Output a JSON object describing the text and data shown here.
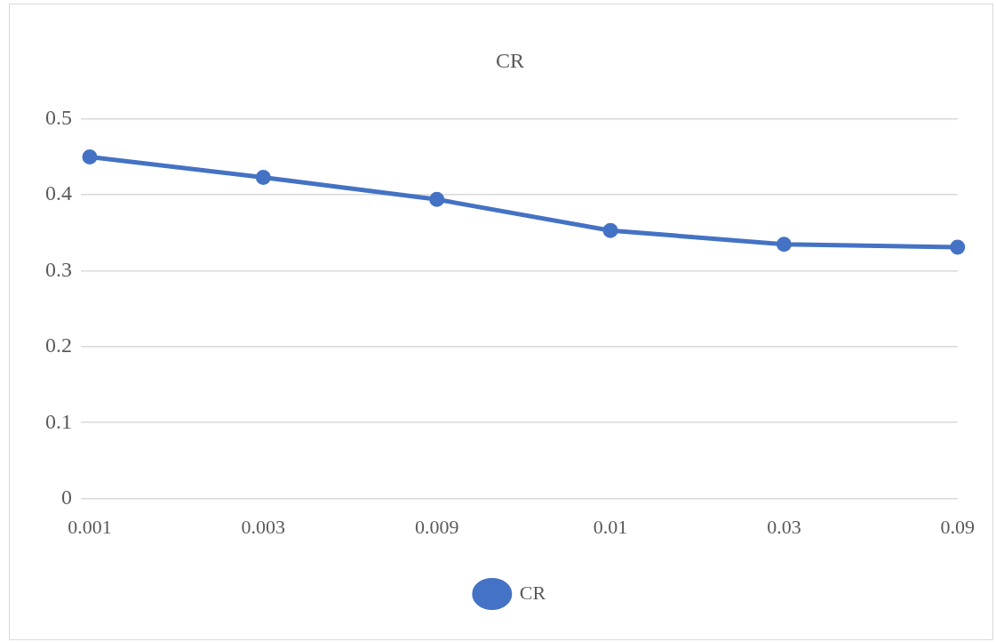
{
  "chart_data": {
    "type": "line",
    "title": "CR",
    "categories": [
      "0.001",
      "0.003",
      "0.009",
      "0.01",
      "0.03",
      "0.09"
    ],
    "series": [
      {
        "name": "CR",
        "color": "#4472c4",
        "values": [
          0.45,
          0.423,
          0.394,
          0.353,
          0.335,
          0.331
        ]
      }
    ],
    "ylim": [
      0,
      0.5
    ],
    "yticks": [
      0,
      0.1,
      0.2,
      0.3,
      0.4,
      0.5
    ],
    "grid": "y",
    "legend": "bottom",
    "marker": "circle",
    "line_style": "solid"
  }
}
